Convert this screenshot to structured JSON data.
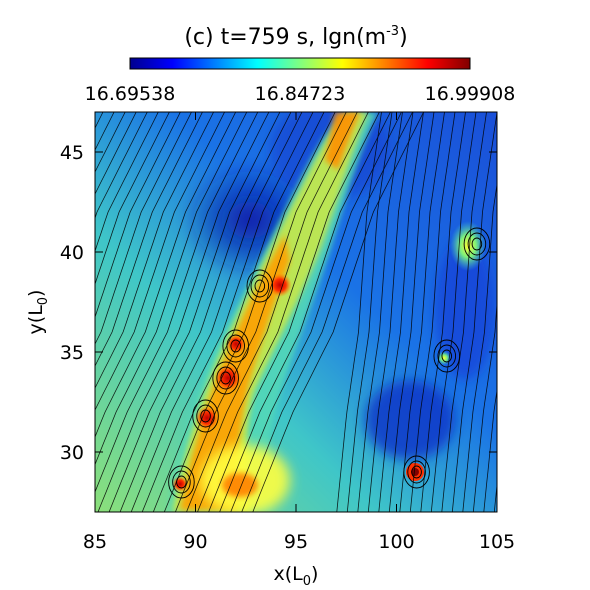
{
  "chart_data": {
    "type": "heatmap",
    "title": "(c) t=759 s, lgn(m",
    "title_sup": "-3",
    "title_close": ")",
    "colorbar": {
      "ticks": [
        "16.69538",
        "16.84723",
        "16.99908"
      ],
      "range": [
        16.69538,
        16.99908
      ],
      "colormap": [
        "#00008f",
        "#0000ff",
        "#0080ff",
        "#00ffff",
        "#80ff80",
        "#ffff00",
        "#ff8000",
        "#ff0000",
        "#800000"
      ]
    },
    "xlabel": "x(L",
    "xlabel_sub": "0",
    "xlabel_close": ")",
    "ylabel": "y(L",
    "ylabel_sub": "0",
    "ylabel_close": ")",
    "xlim": [
      85,
      105
    ],
    "ylim": [
      27,
      47
    ],
    "xticks": [
      85,
      90,
      95,
      100,
      105
    ],
    "yticks": [
      30,
      35,
      40,
      45
    ],
    "features": {
      "ridge": [
        [
          89,
          27
        ],
        [
          91,
          32
        ],
        [
          93,
          36
        ],
        [
          95,
          42
        ],
        [
          97.5,
          47
        ]
      ],
      "islands": [
        [
          93.2,
          38.3
        ],
        [
          92,
          35.3
        ],
        [
          91.5,
          33.7
        ],
        [
          90.5,
          31.8
        ],
        [
          89.3,
          28.5
        ],
        [
          101,
          29
        ],
        [
          102.5,
          34.8
        ],
        [
          104,
          40.4
        ]
      ]
    }
  }
}
